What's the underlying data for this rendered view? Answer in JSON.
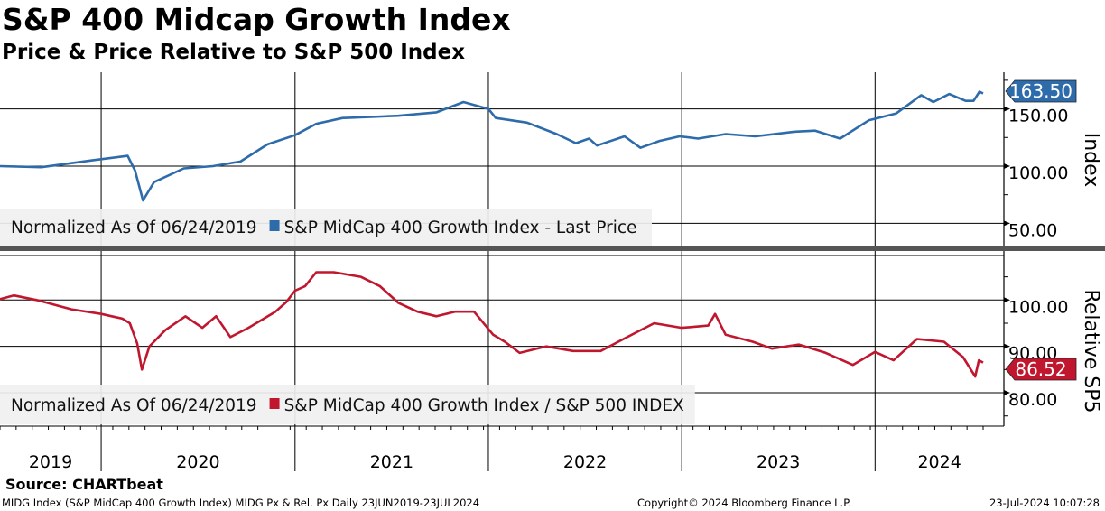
{
  "title": "S&P 400 Midcap Growth Index",
  "subtitle": "Price & Price Relative to S&P 500 Index",
  "source": "Source: CHARTbeat",
  "footer": {
    "left": "MIDG Index (S&P MidCap 400 Growth Index) MIDG Px & Rel. Px  Daily 23JUN2019-23JUL2024",
    "center": "Copyright© 2024 Bloomberg Finance L.P.",
    "right": "23-Jul-2024 10:07:28"
  },
  "chart_data": [
    {
      "type": "line",
      "panel": "top",
      "ylabel": "Index",
      "yticks": [
        "50.00",
        "100.00",
        "150.00"
      ],
      "ylim": [
        29,
        182
      ],
      "legend_prefix": "Normalized As Of 06/24/2019",
      "legend_placement": "bottom-left",
      "color": "#2e6bab",
      "last_value": "163.50",
      "series": [
        {
          "name": "S&P MidCap 400 Growth Index - Last Price",
          "points": [
            [
              "2019-06-24",
              100
            ],
            [
              "2019-09-10",
              99
            ],
            [
              "2019-12-15",
              105
            ],
            [
              "2020-02-20",
              109
            ],
            [
              "2020-03-05",
              96
            ],
            [
              "2020-03-20",
              70
            ],
            [
              "2020-04-10",
              86
            ],
            [
              "2020-06-05",
              98
            ],
            [
              "2020-07-30",
              100
            ],
            [
              "2020-09-20",
              104
            ],
            [
              "2020-11-10",
              119
            ],
            [
              "2021-01-01",
              127
            ],
            [
              "2021-02-10",
              137
            ],
            [
              "2021-04-01",
              142
            ],
            [
              "2021-05-25",
              143
            ],
            [
              "2021-07-15",
              144
            ],
            [
              "2021-09-25",
              147
            ],
            [
              "2021-11-15",
              156
            ],
            [
              "2022-01-01",
              150
            ],
            [
              "2022-01-15",
              142
            ],
            [
              "2022-03-15",
              138
            ],
            [
              "2022-05-10",
              128
            ],
            [
              "2022-06-15",
              120
            ],
            [
              "2022-07-10",
              124
            ],
            [
              "2022-07-25",
              118
            ],
            [
              "2022-09-15",
              126
            ],
            [
              "2022-10-15",
              116
            ],
            [
              "2022-11-20",
              122
            ],
            [
              "2022-12-28",
              126
            ],
            [
              "2023-02-01",
              124
            ],
            [
              "2023-03-25",
              128
            ],
            [
              "2023-05-20",
              126
            ],
            [
              "2023-08-01",
              130
            ],
            [
              "2023-09-10",
              131
            ],
            [
              "2023-10-27",
              124
            ],
            [
              "2023-12-20",
              140
            ],
            [
              "2024-02-10",
              146
            ],
            [
              "2024-03-28",
              162
            ],
            [
              "2024-04-20",
              156
            ],
            [
              "2024-05-20",
              163
            ],
            [
              "2024-06-20",
              157
            ],
            [
              "2024-07-05",
              157
            ],
            [
              "2024-07-16",
              165
            ],
            [
              "2024-07-23",
              163.5
            ]
          ]
        }
      ]
    },
    {
      "type": "line",
      "panel": "bottom",
      "ylabel": "Relative SP5",
      "yticks": [
        "80.00",
        "90.00",
        "100.00"
      ],
      "ylim": [
        73,
        109.6
      ],
      "legend_prefix": "Normalized As Of 06/24/2019",
      "legend_placement": "bottom-left",
      "color": "#c0172f",
      "last_value": "86.52",
      "series": [
        {
          "name": "S&P MidCap 400 Growth Index / S&P 500 INDEX",
          "points": [
            [
              "2019-06-24",
              100.2
            ],
            [
              "2019-07-20",
              101
            ],
            [
              "2019-09-01",
              100
            ],
            [
              "2019-11-06",
              98
            ],
            [
              "2020-01-01",
              97
            ],
            [
              "2020-02-10",
              96
            ],
            [
              "2020-02-24",
              95
            ],
            [
              "2020-03-09",
              90.6
            ],
            [
              "2020-03-18",
              85
            ],
            [
              "2020-04-01",
              90
            ],
            [
              "2020-05-01",
              93.5
            ],
            [
              "2020-06-08",
              96.5
            ],
            [
              "2020-07-10",
              94
            ],
            [
              "2020-08-05",
              96.5
            ],
            [
              "2020-09-01",
              92
            ],
            [
              "2020-10-05",
              94
            ],
            [
              "2020-11-25",
              97.5
            ],
            [
              "2020-12-15",
              99.5
            ],
            [
              "2021-01-01",
              102
            ],
            [
              "2021-01-20",
              103
            ],
            [
              "2021-02-10",
              106
            ],
            [
              "2021-03-15",
              106
            ],
            [
              "2021-05-05",
              105
            ],
            [
              "2021-06-10",
              103
            ],
            [
              "2021-07-15",
              99.4
            ],
            [
              "2021-08-20",
              97.5
            ],
            [
              "2021-09-25",
              96.5
            ],
            [
              "2021-10-30",
              97.5
            ],
            [
              "2021-12-05",
              97.5
            ],
            [
              "2022-01-10",
              92.5
            ],
            [
              "2022-02-01",
              91
            ],
            [
              "2022-03-01",
              88.6
            ],
            [
              "2022-04-20",
              90
            ],
            [
              "2022-06-10",
              89
            ],
            [
              "2022-08-01",
              89
            ],
            [
              "2022-09-20",
              92
            ],
            [
              "2022-11-10",
              95
            ],
            [
              "2023-01-01",
              94
            ],
            [
              "2023-02-20",
              94.5
            ],
            [
              "2023-03-05",
              97
            ],
            [
              "2023-03-25",
              92.5
            ],
            [
              "2023-05-15",
              91
            ],
            [
              "2023-06-20",
              89.5
            ],
            [
              "2023-08-10",
              90.4
            ],
            [
              "2023-09-30",
              88.6
            ],
            [
              "2023-11-20",
              86
            ],
            [
              "2024-01-01",
              88.8
            ],
            [
              "2024-02-05",
              87
            ],
            [
              "2024-03-20",
              91.6
            ],
            [
              "2024-05-10",
              91
            ],
            [
              "2024-06-15",
              87.7
            ],
            [
              "2024-07-08",
              83.5
            ],
            [
              "2024-07-15",
              87
            ],
            [
              "2024-07-23",
              86.52
            ]
          ]
        }
      ]
    }
  ],
  "x_axis": {
    "start": "2019-06-24",
    "end": "2024-07-23",
    "year_labels": [
      "2019",
      "2020",
      "2021",
      "2022",
      "2023",
      "2024"
    ]
  }
}
